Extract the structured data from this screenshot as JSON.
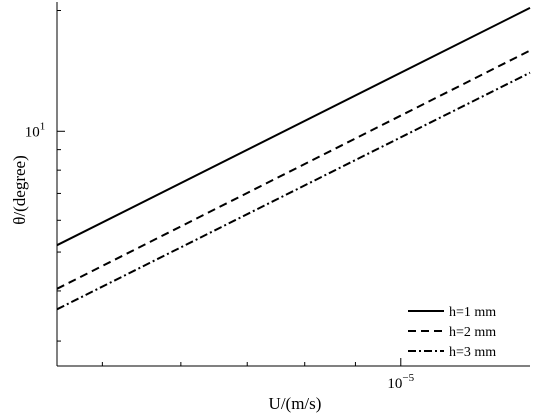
{
  "chart_data": {
    "type": "line",
    "title": "",
    "xlabel": "U/(m/s)",
    "ylabel": "θ/(degree)",
    "xscale": "log",
    "yscale": "log",
    "xlim": [
      4.5e-06,
      1.35e-05
    ],
    "ylim": [
      2.6,
      21.0
    ],
    "grid": false,
    "legend": "bottom-right",
    "x_ticks": [
      {
        "value": 1e-05,
        "base": "10",
        "exp": "−5"
      }
    ],
    "y_ticks": [
      {
        "value": 10,
        "base": "10",
        "exp": "1"
      }
    ],
    "series": [
      {
        "name": "h=1 mm",
        "dash": "solid",
        "x": [
          4.5e-06,
          1.35e-05
        ],
        "y": [
          5.2,
          20.3
        ]
      },
      {
        "name": "h=2 mm",
        "dash": "dashed",
        "x": [
          4.5e-06,
          1.35e-05
        ],
        "y": [
          4.05,
          15.9
        ]
      },
      {
        "name": "h=3 mm",
        "dash": "dashdot",
        "x": [
          4.5e-06,
          1.35e-05
        ],
        "y": [
          3.6,
          14.0
        ]
      }
    ]
  }
}
